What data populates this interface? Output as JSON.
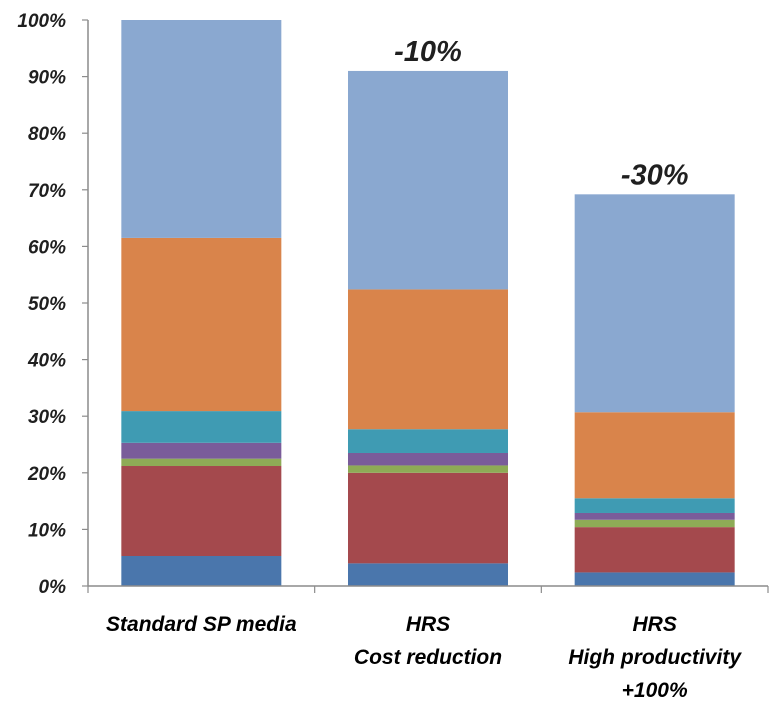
{
  "chart_data": {
    "type": "bar",
    "stacked": true,
    "title": "",
    "xlabel": "",
    "ylabel": "",
    "ylim": [
      0,
      100
    ],
    "y_ticks": [
      "0%",
      "10%",
      "20%",
      "30%",
      "40%",
      "50%",
      "60%",
      "70%",
      "80%",
      "90%",
      "100%"
    ],
    "categories": [
      [
        "Standard SP media"
      ],
      [
        "HRS",
        "Cost reduction"
      ],
      [
        "HRS",
        "High productivity",
        "+100%"
      ]
    ],
    "series": [
      {
        "color": "#4a76ac",
        "values": [
          5.3,
          4.0,
          2.4
        ]
      },
      {
        "color": "#a4494d",
        "values": [
          15.9,
          16.0,
          8.0
        ]
      },
      {
        "color": "#8eab56",
        "values": [
          1.3,
          1.3,
          1.3
        ]
      },
      {
        "color": "#7a5c9a",
        "values": [
          2.8,
          2.2,
          1.2
        ]
      },
      {
        "color": "#3f9bb3",
        "values": [
          5.6,
          4.2,
          2.6
        ]
      },
      {
        "color": "#d9844b",
        "values": [
          30.6,
          24.7,
          15.2
        ]
      },
      {
        "color": "#8aa8d0",
        "values": [
          38.5,
          38.6,
          38.5
        ]
      }
    ],
    "annotations": [
      "",
      "-10%",
      "-30%"
    ],
    "grid": false,
    "legend": "none"
  }
}
